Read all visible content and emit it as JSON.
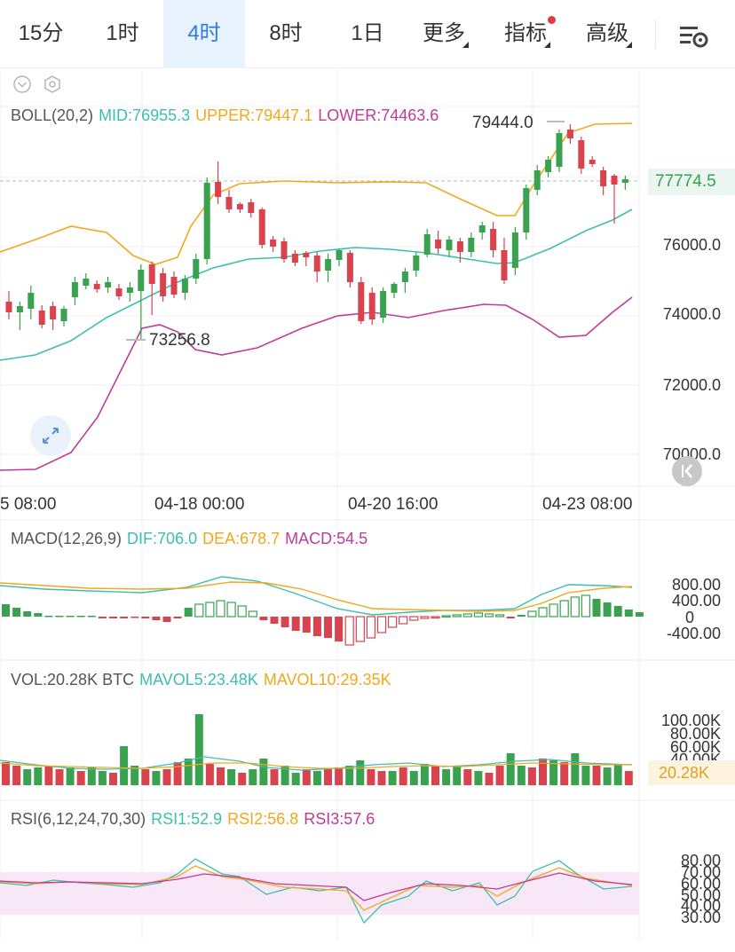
{
  "tabs": [
    {
      "label": "15分"
    },
    {
      "label": "1时"
    },
    {
      "label": "4时"
    },
    {
      "label": "8时"
    },
    {
      "label": "1日"
    },
    {
      "label": "更多"
    },
    {
      "label": "指标"
    },
    {
      "label": "高级"
    }
  ],
  "active_tab": "4时",
  "boll": {
    "name": "BOLL(20,2)",
    "mid": "MID:76955.3",
    "upper": "UPPER:79447.1",
    "lower": "LOWER:74463.6"
  },
  "price_axis": [
    "76000.0",
    "74000.0",
    "72000.0",
    "70000.0"
  ],
  "current_price": "77774.5",
  "high_marker": "79444.0",
  "low_marker": "73256.8",
  "x_axis": [
    "5 08:00",
    "04-18 00:00",
    "04-20 16:00",
    "04-23 08:00"
  ],
  "macd": {
    "name": "MACD(12,26,9)",
    "dif": "DIF:706.0",
    "dea": "DEA:678.7",
    "macd": "MACD:54.5",
    "axis": [
      "800.00",
      "400.00",
      "0",
      "-400.00"
    ]
  },
  "vol": {
    "name": "VOL:20.28K BTC",
    "mavol5": "MAVOL5:23.48K",
    "mavol10": "MAVOL10:29.35K",
    "axis": [
      "100.00K",
      "80.00K",
      "60.00K",
      "40.00K"
    ],
    "current": "20.28K"
  },
  "rsi": {
    "name": "RSI(6,12,24,70,30)",
    "rsi1": "RSI1:52.9",
    "rsi2": "RSI2:56.8",
    "rsi3": "RSI3:57.6",
    "axis": [
      "80.00",
      "70.00",
      "60.00",
      "50.00",
      "40.00",
      "30.00"
    ]
  },
  "colors": {
    "up": "#3aa14f",
    "down": "#d8434e",
    "accent": "#2e7de1",
    "mid": "#3dbfad",
    "upper": "#f0a81c",
    "lower": "#c03a9a"
  },
  "icons": {
    "settings": "chart-settings-icon",
    "expand": "expand-icon",
    "collapse": "collapse-left-icon",
    "hide": "chevron-down-icon",
    "config": "hexagon-settings-icon"
  }
}
